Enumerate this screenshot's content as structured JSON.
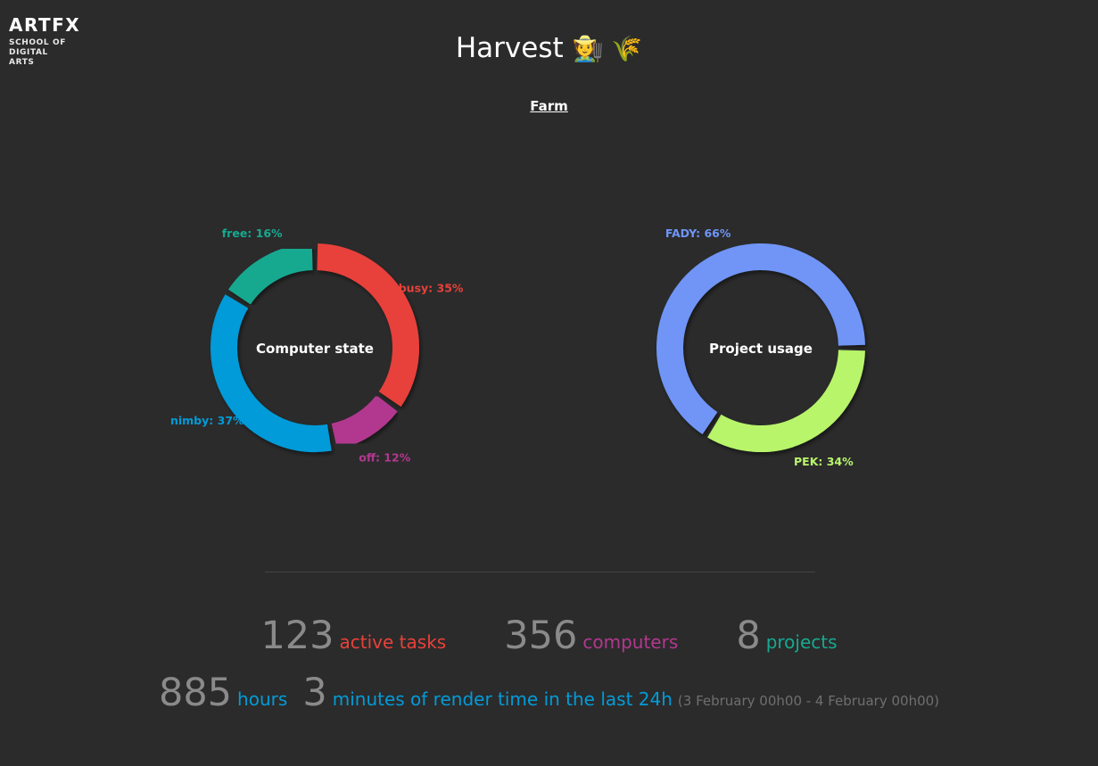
{
  "logo": {
    "brand": "ARTFX",
    "tagline": "SCHOOL OF DIGITAL ARTS"
  },
  "header": {
    "title": "Harvest",
    "emoji": "🧑‍🌾 🌾"
  },
  "nav": {
    "farm_link": "Farm"
  },
  "chart_data": [
    {
      "type": "pie",
      "title": "Computer state",
      "slices": [
        {
          "name": "busy",
          "label": "busy: 35%",
          "value": 35,
          "color": "#e8413a"
        },
        {
          "name": "off",
          "label": "off: 12%",
          "value": 12,
          "color": "#b2388f"
        },
        {
          "name": "nimby",
          "label": "nimby: 37%",
          "value": 37,
          "color": "#029bd8"
        },
        {
          "name": "free",
          "label": "free: 16%",
          "value": 16,
          "color": "#17a990"
        }
      ]
    },
    {
      "type": "pie",
      "title": "Project usage",
      "slices": [
        {
          "name": "PEK",
          "label": "PEK: 34%",
          "value": 34,
          "color": "#b8f56b"
        },
        {
          "name": "FADY",
          "label": "FADY: 66%",
          "value": 66,
          "color": "#6f95f7"
        }
      ]
    }
  ],
  "stats": {
    "active_tasks": {
      "value": "123",
      "label": "active tasks",
      "color": "#e8413a"
    },
    "computers": {
      "value": "356",
      "label": "computers",
      "color": "#b2388f"
    },
    "projects": {
      "value": "8",
      "label": "projects",
      "color": "#17a990"
    },
    "hours": {
      "value": "885",
      "label": "hours",
      "color": "#029bd8"
    },
    "minutes": {
      "value": "3",
      "label": "minutes of render time in the last 24h",
      "color": "#029bd8"
    },
    "range": "(3 February 00h00 - 4 February 00h00)"
  }
}
